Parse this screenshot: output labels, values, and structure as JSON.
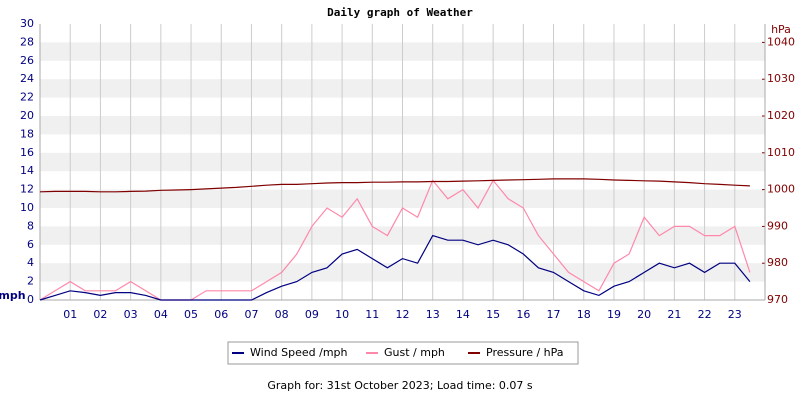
{
  "chart_data": {
    "type": "line",
    "title": "Daily graph of Weather",
    "y_label": "mph",
    "y2_label": "hPa",
    "footer": "Graph for: 31st October 2023; Load time: 0.07 s",
    "xlim": [
      0,
      24
    ],
    "xticks": [
      {
        "value": 1,
        "label": "01"
      },
      {
        "value": 2,
        "label": "02"
      },
      {
        "value": 3,
        "label": "03"
      },
      {
        "value": 4,
        "label": "04"
      },
      {
        "value": 5,
        "label": "05"
      },
      {
        "value": 6,
        "label": "06"
      },
      {
        "value": 7,
        "label": "07"
      },
      {
        "value": 8,
        "label": "08"
      },
      {
        "value": 9,
        "label": "09"
      },
      10,
      11,
      12,
      13,
      14,
      15,
      16,
      17,
      18,
      19,
      20,
      21,
      22,
      23
    ],
    "ylim": [
      0,
      30
    ],
    "yticks": [
      0,
      2,
      4,
      6,
      8,
      10,
      12,
      14,
      16,
      18,
      20,
      22,
      24,
      26,
      28,
      30
    ],
    "y2lim": [
      970,
      1045
    ],
    "y2ticks": [
      970,
      980,
      990,
      1000,
      1010,
      1020,
      1030,
      1040
    ],
    "grid": true,
    "x": [
      0,
      0.5,
      1,
      1.5,
      2,
      2.5,
      3,
      3.5,
      4,
      4.5,
      5,
      5.5,
      6,
      6.5,
      7,
      7.5,
      8,
      8.5,
      9,
      9.5,
      10,
      10.5,
      11,
      11.5,
      12,
      12.5,
      13,
      13.5,
      14,
      14.5,
      15,
      15.5,
      16,
      16.5,
      17,
      17.5,
      18,
      18.5,
      19,
      19.5,
      20,
      20.5,
      21,
      21.5,
      22,
      22.5,
      23,
      23.5
    ],
    "series": [
      {
        "name": "Wind Speed /mph",
        "color": "#000080",
        "axis": "y",
        "values": [
          0,
          0.5,
          1,
          0.8,
          0.5,
          0.8,
          0.8,
          0.5,
          0,
          0,
          0,
          0,
          0,
          0,
          0,
          0.8,
          1.5,
          2,
          3,
          3.5,
          5,
          5.5,
          4.5,
          3.5,
          4.5,
          4,
          7,
          6.5,
          6.5,
          6,
          6.5,
          6,
          5,
          3.5,
          3,
          2,
          1,
          0.5,
          1.5,
          2,
          3,
          4,
          3.5,
          4,
          3,
          4,
          4,
          2
        ]
      },
      {
        "name": "Gust / mph",
        "color": "#ff88aa",
        "axis": "y",
        "values": [
          0,
          1,
          2,
          1,
          1,
          1,
          2,
          1,
          0,
          0,
          0,
          1,
          1,
          1,
          1,
          2,
          3,
          5,
          8,
          10,
          9,
          11,
          8,
          7,
          10,
          9,
          13,
          11,
          12,
          10,
          13,
          11,
          10,
          7,
          5,
          3,
          2,
          1,
          4,
          5,
          9,
          7,
          8,
          8,
          7,
          7,
          8,
          3
        ]
      },
      {
        "name": "Pressure / hPa",
        "color": "#800000",
        "axis": "y2",
        "values": [
          999.4,
          999.5,
          999.5,
          999.5,
          999.4,
          999.4,
          999.5,
          999.6,
          999.8,
          999.9,
          1000,
          1000.2,
          1000.4,
          1000.6,
          1000.9,
          1001.2,
          1001.4,
          1001.4,
          1001.6,
          1001.8,
          1001.9,
          1001.9,
          1002,
          1002,
          1002.1,
          1002.1,
          1002.2,
          1002.2,
          1002.3,
          1002.4,
          1002.5,
          1002.6,
          1002.7,
          1002.8,
          1002.9,
          1002.9,
          1002.9,
          1002.8,
          1002.6,
          1002.5,
          1002.4,
          1002.3,
          1002.1,
          1001.9,
          1001.6,
          1001.4,
          1001.2,
          1001
        ]
      }
    ]
  }
}
